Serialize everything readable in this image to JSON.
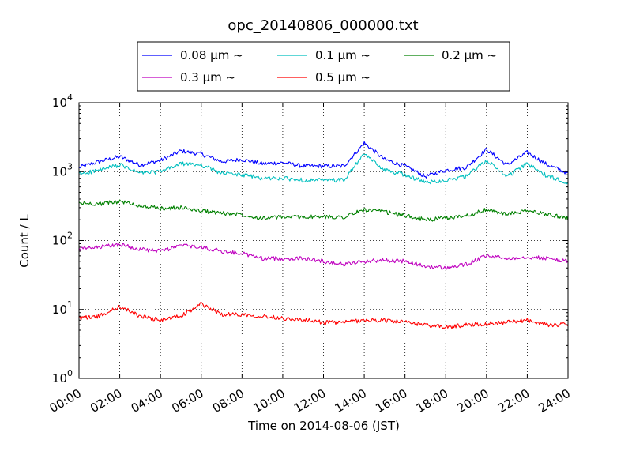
{
  "chart_data": {
    "type": "line",
    "title": "opc_20140806_000000.txt",
    "xlabel": "Time on 2014-08-06 (JST)",
    "ylabel": "Count / L",
    "yscale": "log",
    "ylim": [
      1,
      10000
    ],
    "xlim": [
      "00:00",
      "24:00"
    ],
    "grid": true,
    "legend_position": "top",
    "x_ticks": [
      "00:00",
      "02:00",
      "04:00",
      "06:00",
      "08:00",
      "10:00",
      "12:00",
      "14:00",
      "16:00",
      "18:00",
      "20:00",
      "22:00",
      "24:00"
    ],
    "y_ticks": [
      {
        "base": "10",
        "exp": "0",
        "value": 1
      },
      {
        "base": "10",
        "exp": "1",
        "value": 10
      },
      {
        "base": "10",
        "exp": "2",
        "value": 100
      },
      {
        "base": "10",
        "exp": "3",
        "value": 1000
      },
      {
        "base": "10",
        "exp": "4",
        "value": 10000
      }
    ],
    "x_hours": [
      0,
      1,
      2,
      3,
      4,
      5,
      6,
      7,
      8,
      9,
      10,
      11,
      12,
      13,
      14,
      15,
      16,
      17,
      18,
      19,
      20,
      21,
      22,
      23,
      24
    ],
    "series": [
      {
        "name": "0.08 μm ~",
        "color": "#0000ff",
        "values": [
          1150,
          1400,
          1650,
          1250,
          1450,
          2000,
          1800,
          1400,
          1500,
          1300,
          1350,
          1200,
          1200,
          1200,
          2600,
          1500,
          1200,
          850,
          1050,
          1150,
          2100,
          1250,
          1900,
          1250,
          950
        ]
      },
      {
        "name": "0.1 μm ~",
        "color": "#00bfbf",
        "values": [
          920,
          1050,
          1250,
          950,
          1000,
          1300,
          1250,
          950,
          900,
          800,
          800,
          750,
          750,
          750,
          1800,
          1050,
          900,
          700,
          750,
          850,
          1450,
          850,
          1300,
          850,
          700
        ]
      },
      {
        "name": "0.2 μm ~",
        "color": "#008000",
        "values": [
          350,
          340,
          370,
          320,
          290,
          300,
          270,
          250,
          240,
          210,
          220,
          220,
          220,
          220,
          280,
          260,
          230,
          200,
          210,
          230,
          280,
          240,
          270,
          240,
          210
        ]
      },
      {
        "name": "0.3 μm ~",
        "color": "#bf00bf",
        "values": [
          75,
          80,
          88,
          75,
          70,
          85,
          80,
          70,
          65,
          55,
          55,
          55,
          50,
          45,
          50,
          52,
          50,
          42,
          40,
          45,
          60,
          55,
          58,
          55,
          50
        ]
      },
      {
        "name": "0.5 μm ~",
        "color": "#ff0000",
        "values": [
          7.5,
          8.0,
          11.0,
          8.0,
          7.0,
          8.0,
          12.0,
          8.5,
          8.5,
          8.0,
          7.5,
          7.0,
          6.5,
          6.5,
          7.0,
          7.0,
          6.5,
          6.0,
          5.5,
          6.0,
          6.2,
          6.5,
          7.0,
          6.0,
          6.0
        ]
      }
    ]
  }
}
